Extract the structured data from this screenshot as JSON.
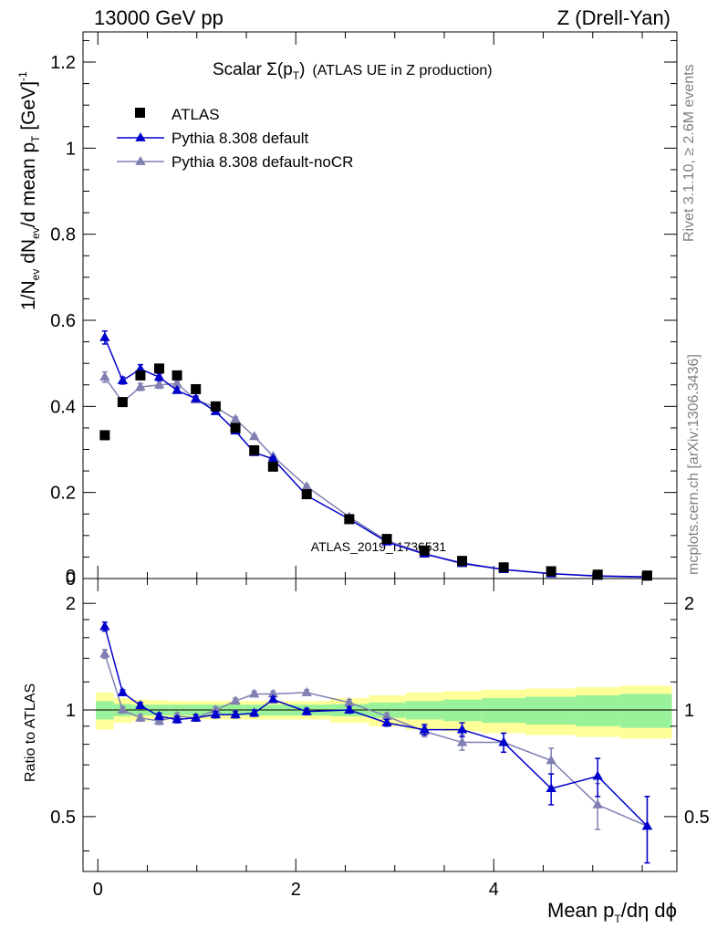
{
  "header": {
    "left": "13000 GeV pp",
    "right": "Z (Drell-Yan)"
  },
  "side_labels": {
    "rivet": "Rivet 3.1.10, ≥ 2.6M events",
    "mcplots": "mcplots.cern.ch [arXiv:1306.3436]"
  },
  "colors": {
    "atlas": "#000000",
    "default": "#0000cc",
    "default_noCR": "#7f7fb2",
    "band_inner": "#99f299",
    "band_outer": "#ffff99"
  },
  "chart_data": [
    {
      "type": "scatter",
      "title": {
        "prefix": "Scalar Σ(p",
        "sub": "T",
        "suffix": ")",
        "note": "(ATLAS UE in Z production)"
      },
      "ylabel": {
        "a": "1/N",
        "a_sub": "ev",
        "b": " dN",
        "b_sub": "ev",
        "c": "/d mean p",
        "c_sub": "T",
        "d": " [GeV]",
        "d_sup": "-1"
      },
      "xlim": [
        -0.15,
        5.85
      ],
      "ylim": [
        0,
        1.27
      ],
      "y_ticks": [
        "0",
        "0.2",
        "0.4",
        "0.6",
        "0.8",
        "1",
        "1.2"
      ],
      "watermark": "ATLAS_2019_I1736531",
      "legend_position": "top-left",
      "x": [
        0.07,
        0.25,
        0.43,
        0.62,
        0.8,
        0.99,
        1.19,
        1.39,
        1.58,
        1.77,
        2.11,
        2.54,
        2.92,
        3.3,
        3.68,
        4.1,
        4.58,
        5.05,
        5.55
      ],
      "series": [
        {
          "name": "ATLAS",
          "marker": "square",
          "values": [
            0.333,
            0.41,
            0.472,
            0.488,
            0.472,
            0.44,
            0.4,
            0.35,
            0.298,
            0.26,
            0.196,
            0.138,
            0.092,
            0.065,
            0.041,
            0.026,
            0.017,
            0.009,
            0.007
          ]
        },
        {
          "name": "Pythia 8.308 default",
          "marker": "triangle",
          "values": [
            0.56,
            0.46,
            0.487,
            0.468,
            0.437,
            0.418,
            0.388,
            0.343,
            0.293,
            0.278,
            0.193,
            0.138,
            0.085,
            0.057,
            0.036,
            0.021,
            0.011,
            0.006,
            0.004
          ],
          "errors": [
            0.015,
            0.008,
            0.01,
            0.008,
            0.006,
            0.006,
            0.005,
            0.005,
            0.004,
            0.004,
            0.003,
            0.003,
            0.002,
            0.002,
            0.002,
            0.001,
            0.001,
            0.001,
            0.001
          ]
        },
        {
          "name": "Pythia 8.308 default-noCR",
          "marker": "triangle",
          "values": [
            0.468,
            0.41,
            0.445,
            0.45,
            0.453,
            0.415,
            0.398,
            0.37,
            0.33,
            0.284,
            0.214,
            0.143,
            0.088,
            0.058,
            0.034,
            0.021,
            0.012,
            0.005,
            0.003
          ],
          "errors": [
            0.012,
            0.008,
            0.008,
            0.008,
            0.006,
            0.006,
            0.005,
            0.005,
            0.004,
            0.004,
            0.003,
            0.003,
            0.002,
            0.002,
            0.002,
            0.001,
            0.001,
            0.001,
            0.001
          ]
        }
      ]
    },
    {
      "type": "scatter",
      "xlabel": {
        "a": "Mean p",
        "sub": "T",
        "b": "/dη dϕ"
      },
      "ylabel": "Ratio to ATLAS",
      "xlim": [
        -0.15,
        5.85
      ],
      "ylim": [
        0.35,
        2.35
      ],
      "scale": "log",
      "x_ticks": [
        "0",
        "2",
        "4"
      ],
      "y_ticks": [
        "0.5",
        "1",
        "2"
      ],
      "band": {
        "x_edges": [
          -0.02,
          0.16,
          0.34,
          0.52,
          0.71,
          0.89,
          1.09,
          1.29,
          1.48,
          1.67,
          1.87,
          2.35,
          2.74,
          3.11,
          3.49,
          3.88,
          4.32,
          4.83,
          5.28,
          5.8
        ],
        "inner": [
          0.06,
          0.04,
          0.035,
          0.035,
          0.035,
          0.035,
          0.035,
          0.035,
          0.035,
          0.035,
          0.035,
          0.04,
          0.05,
          0.06,
          0.07,
          0.08,
          0.09,
          0.1,
          0.11
        ],
        "outer": [
          0.12,
          0.08,
          0.07,
          0.065,
          0.06,
          0.06,
          0.06,
          0.06,
          0.06,
          0.06,
          0.06,
          0.08,
          0.1,
          0.12,
          0.13,
          0.14,
          0.15,
          0.16,
          0.17
        ]
      },
      "series": [
        {
          "name": "Pythia 8.308 default",
          "values": [
            1.72,
            1.12,
            1.03,
            0.96,
            0.94,
            0.95,
            0.97,
            0.97,
            0.98,
            1.07,
            0.99,
            1.0,
            0.92,
            0.88,
            0.88,
            0.81,
            0.6,
            0.65,
            0.47
          ],
          "errors": [
            0.05,
            0.02,
            0.02,
            0.02,
            0.02,
            0.02,
            0.02,
            0.02,
            0.02,
            0.02,
            0.02,
            0.02,
            0.02,
            0.03,
            0.04,
            0.05,
            0.06,
            0.08,
            0.1
          ]
        },
        {
          "name": "Pythia 8.308 default-noCR",
          "values": [
            1.44,
            1.0,
            0.95,
            0.93,
            0.96,
            0.95,
            1.0,
            1.06,
            1.11,
            1.11,
            1.12,
            1.05,
            0.96,
            0.87,
            0.81,
            0.81,
            0.72,
            0.54,
            0.47
          ],
          "errors": [
            0.04,
            0.02,
            0.02,
            0.02,
            0.02,
            0.02,
            0.02,
            0.02,
            0.02,
            0.02,
            0.02,
            0.02,
            0.02,
            0.03,
            0.04,
            0.05,
            0.06,
            0.08,
            0.1
          ]
        }
      ]
    }
  ]
}
